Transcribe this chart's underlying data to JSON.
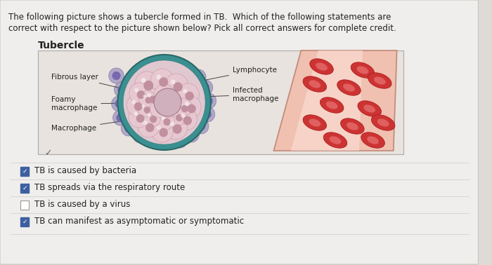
{
  "bg_color": "#dedad6",
  "card_bg": "#f0eeec",
  "question_text_line1": "The following picture shows a tubercle formed in TB.  Which of the following statements are",
  "question_text_line2": "correct with respect to the picture shown below? Pick all correct answers for complete credit.",
  "tubercle_label": "Tubercle",
  "checkboxes": [
    {
      "text": "TB is caused by bacteria",
      "checked": true
    },
    {
      "text": "TB spreads via the respiratory route",
      "checked": true
    },
    {
      "text": "TB is caused by a virus",
      "checked": false
    },
    {
      "text": "TB can manifest as asymptomatic or symptomatic",
      "checked": true
    }
  ],
  "check_color": "#3d5fa0",
  "text_color": "#222222",
  "question_fontsize": 8.5,
  "check_fontsize": 8.5,
  "tubercle_title_fontsize": 10,
  "label_fontsize": 7.5,
  "img_bg": "#e8e3de",
  "fibrous_ring_color": "#3a9090",
  "fibrous_ring_inner": "#2a6868",
  "lymphocyte_fill": "#b0a8c8",
  "lymphocyte_edge": "#8878a8",
  "lymphocyte_nucleus": "#7868b0",
  "macrophage_fill": "#e8c8d0",
  "macrophage_edge": "#c098a8",
  "macrophage_nucleus": "#c090a0",
  "vessel_fill": "#f0c0b0",
  "vessel_edge": "#c08878",
  "rbc_fill": "#cc3333",
  "rbc_edge": "#aa1111",
  "rbc_inner": "#e06060"
}
